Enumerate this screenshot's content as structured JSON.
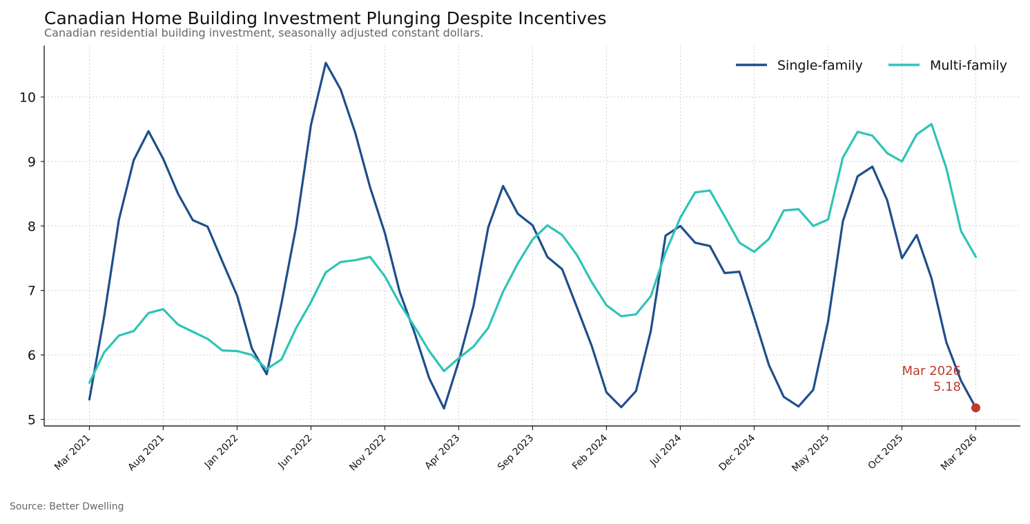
{
  "chart_data": {
    "type": "line",
    "title": "Canadian Home Building Investment Plunging Despite Incentives",
    "subtitle": "Canadian residential building investment, seasonally adjusted constant dollars.",
    "source": "Source: Better Dwelling",
    "x": [
      "Mar 2021",
      "Apr 2021",
      "May 2021",
      "Jun 2021",
      "Jul 2021",
      "Aug 2021",
      "Sep 2021",
      "Oct 2021",
      "Nov 2021",
      "Dec 2021",
      "Jan 2022",
      "Feb 2022",
      "Mar 2022",
      "Apr 2022",
      "May 2022",
      "Jun 2022",
      "Jul 2022",
      "Aug 2022",
      "Sep 2022",
      "Oct 2022",
      "Nov 2022",
      "Dec 2022",
      "Jan 2023",
      "Feb 2023",
      "Mar 2023",
      "Apr 2023",
      "May 2023",
      "Jun 2023",
      "Jul 2023",
      "Aug 2023",
      "Sep 2023",
      "Oct 2023",
      "Nov 2023",
      "Dec 2023",
      "Jan 2024",
      "Feb 2024",
      "Mar 2024",
      "Apr 2024",
      "May 2024",
      "Jun 2024",
      "Jul 2024",
      "Aug 2024",
      "Sep 2024",
      "Oct 2024",
      "Nov 2024",
      "Dec 2024",
      "Jan 2025",
      "Feb 2025",
      "Mar 2025",
      "Apr 2025",
      "May 2025",
      "Jun 2025",
      "Jul 2025",
      "Aug 2025",
      "Sep 2025",
      "Oct 2025",
      "Nov 2025",
      "Dec 2025",
      "Jan 2026",
      "Feb 2026",
      "Mar 2026"
    ],
    "tick_labels": [
      "Mar 2021",
      "Aug 2021",
      "Jan 2022",
      "Jun 2022",
      "Nov 2022",
      "Apr 2023",
      "Sep 2023",
      "Feb 2024",
      "Jul 2024",
      "Dec 2024",
      "May 2025",
      "Oct 2025",
      "Mar 2026"
    ],
    "y_ticks": [
      "5",
      "6",
      "7",
      "8",
      "9",
      "10"
    ],
    "ylim": [
      4.9,
      10.8
    ],
    "grid": true,
    "legend_position": "top-right",
    "series": [
      {
        "name": "Single-family",
        "color": "#1f4e8c",
        "values": [
          5.31,
          6.6,
          8.1,
          9.02,
          9.47,
          9.04,
          8.5,
          8.09,
          7.99,
          7.45,
          6.92,
          6.1,
          5.7,
          6.8,
          8.0,
          9.57,
          10.53,
          10.12,
          9.44,
          8.6,
          7.89,
          6.98,
          6.35,
          5.64,
          5.17,
          5.9,
          6.76,
          7.98,
          8.62,
          8.19,
          8.01,
          7.52,
          7.33,
          6.74,
          6.14,
          5.42,
          5.19,
          5.44,
          6.37,
          7.85,
          8.0,
          7.74,
          7.69,
          7.27,
          7.29,
          6.58,
          5.84,
          5.35,
          5.2,
          5.46,
          6.52,
          8.07,
          8.77,
          8.92,
          8.4,
          7.5,
          7.86,
          7.19,
          6.2,
          5.6,
          5.18
        ]
      },
      {
        "name": "Multi-family",
        "color": "#2ec4b6",
        "values": [
          5.57,
          6.04,
          6.3,
          6.37,
          6.65,
          6.71,
          6.47,
          6.36,
          6.25,
          6.07,
          6.06,
          6.0,
          5.78,
          5.93,
          6.42,
          6.82,
          7.28,
          7.44,
          7.47,
          7.52,
          7.22,
          6.8,
          6.44,
          6.06,
          5.75,
          5.95,
          6.13,
          6.42,
          6.98,
          7.42,
          7.79,
          8.01,
          7.86,
          7.55,
          7.13,
          6.77,
          6.6,
          6.63,
          6.91,
          7.59,
          8.13,
          8.52,
          8.55,
          8.15,
          7.74,
          7.6,
          7.8,
          8.24,
          8.26,
          8.0,
          8.1,
          9.06,
          9.46,
          9.4,
          9.13,
          9.0,
          9.42,
          9.58,
          8.9,
          7.92,
          7.52
        ]
      }
    ],
    "annotations": [
      {
        "label": "Mar 2026",
        "value": "5.18",
        "color": "#c0392b"
      }
    ]
  }
}
